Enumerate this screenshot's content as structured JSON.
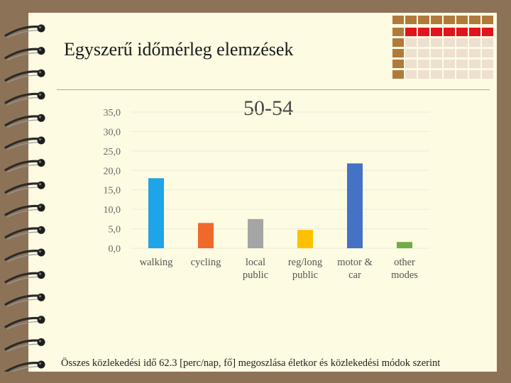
{
  "slide": {
    "title": "Egyszerű időmérleg elemzések",
    "caption": "Összes közlekedési idő 62.3 [perc/nap, fő] megoszlása életkor és közlekedési módok szerint"
  },
  "colors": {
    "background": "#8c7358",
    "page": "#fdfbe2",
    "deco_brown": "#b07a3c",
    "deco_red": "#e0141c",
    "deco_light": "#ede0d0"
  },
  "chart_data": {
    "type": "bar",
    "title": "50-54",
    "categories": [
      [
        "walking"
      ],
      [
        "cycling"
      ],
      [
        "local",
        "public"
      ],
      [
        "reg/long",
        "public"
      ],
      [
        "motor &",
        "car"
      ],
      [
        "other",
        "modes"
      ]
    ],
    "values": [
      18.0,
      6.5,
      7.5,
      4.7,
      21.8,
      1.6
    ],
    "colors": [
      "#1fa4e8",
      "#ef6a2a",
      "#a5a5a5",
      "#ffc000",
      "#4472c4",
      "#70ad47"
    ],
    "yticks": [
      "0,0",
      "5,0",
      "10,0",
      "15,0",
      "20,0",
      "25,0",
      "30,0",
      "35,0"
    ],
    "ylim": [
      0,
      35
    ],
    "grid": true,
    "legend": "none"
  }
}
